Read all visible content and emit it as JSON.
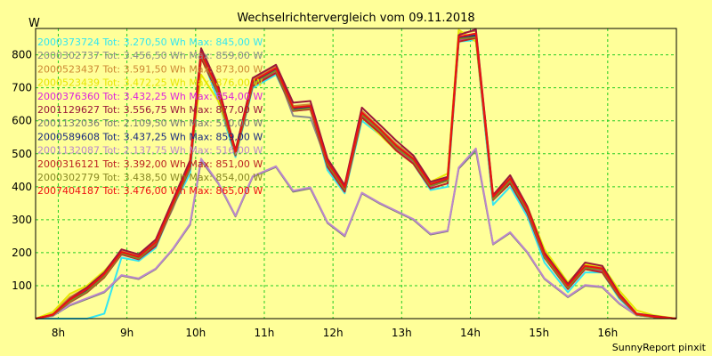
{
  "chart_data": {
    "type": "line",
    "title": "Wechselrichtervergleich vom 09.11.2018",
    "ylabel": "W",
    "ylim": [
      0,
      880
    ],
    "yticks": [
      100,
      200,
      300,
      400,
      500,
      600,
      700,
      800
    ],
    "xlim": [
      7.67,
      17.0
    ],
    "xticks": [
      {
        "x": 8,
        "label": "8h"
      },
      {
        "x": 9,
        "label": "9h"
      },
      {
        "x": 10,
        "label": "10h"
      },
      {
        "x": 11,
        "label": "11h"
      },
      {
        "x": 12,
        "label": "12h"
      },
      {
        "x": 13,
        "label": "13h"
      },
      {
        "x": 14,
        "label": "14h"
      },
      {
        "x": 15,
        "label": "15h"
      },
      {
        "x": 16,
        "label": "16h"
      }
    ],
    "grid": true,
    "legend_position": "top-left",
    "footer": "SunnyReport pinxit",
    "series": [
      {
        "name": "2000373724 Tot: 3.270,50 Wh Max: 845,00 W",
        "color": "#33e6f2",
        "x": [
          7.67,
          7.92,
          8.17,
          8.42,
          8.67,
          8.92,
          9.17,
          9.42,
          9.67,
          9.92,
          10.08,
          10.33,
          10.58,
          10.83,
          11.17,
          11.42,
          11.67,
          11.92,
          12.17,
          12.42,
          12.67,
          12.92,
          13.17,
          13.42,
          13.67,
          13.83,
          14.08,
          14.33,
          14.58,
          14.83,
          15.08,
          15.42,
          15.67,
          15.92,
          16.17,
          16.42,
          16.67,
          17.0
        ],
        "y": [
          0,
          0,
          0,
          0,
          15,
          185,
          175,
          215,
          340,
          440,
          800,
          660,
          490,
          700,
          740,
          630,
          640,
          450,
          380,
          600,
          560,
          515,
          470,
          390,
          400,
          840,
          845,
          345,
          400,
          310,
          170,
          80,
          140,
          140,
          60,
          10,
          5,
          0
        ]
      },
      {
        "name": "2000302737 Tot: 3.456,50 Wh Max: 859,00 W",
        "color": "#8c8c8c",
        "x": [
          7.67,
          7.92,
          8.17,
          8.42,
          8.67,
          8.92,
          9.17,
          9.42,
          9.67,
          9.92,
          10.08,
          10.33,
          10.58,
          10.83,
          11.17,
          11.42,
          11.67,
          11.92,
          12.17,
          12.42,
          12.67,
          12.92,
          13.17,
          13.42,
          13.67,
          13.83,
          14.08,
          14.33,
          14.58,
          14.83,
          15.08,
          15.42,
          15.67,
          15.92,
          16.17,
          16.42,
          16.67,
          17.0
        ],
        "y": [
          0,
          10,
          50,
          80,
          130,
          195,
          180,
          225,
          335,
          465,
          790,
          690,
          500,
          715,
          755,
          615,
          610,
          470,
          390,
          615,
          570,
          520,
          480,
          400,
          425,
          855,
          859,
          365,
          420,
          325,
          190,
          95,
          150,
          145,
          65,
          12,
          5,
          0
        ]
      },
      {
        "name": "2000523437 Tot: 3.591,50 Wh Max: 873,00 W",
        "color": "#cc8833",
        "x": [
          7.67,
          7.92,
          8.17,
          8.42,
          8.67,
          8.92,
          9.17,
          9.42,
          9.67,
          9.92,
          10.08,
          10.33,
          10.58,
          10.83,
          11.17,
          11.42,
          11.67,
          11.92,
          12.17,
          12.42,
          12.67,
          12.92,
          13.17,
          13.42,
          13.67,
          13.83,
          14.08,
          14.33,
          14.58,
          14.83,
          15.08,
          15.42,
          15.67,
          15.92,
          16.17,
          16.42,
          16.67,
          17.0
        ],
        "y": [
          0,
          15,
          65,
          95,
          140,
          205,
          190,
          235,
          355,
          480,
          815,
          700,
          510,
          725,
          765,
          645,
          650,
          480,
          400,
          630,
          580,
          530,
          490,
          410,
          430,
          865,
          873,
          375,
          430,
          335,
          200,
          105,
          165,
          155,
          75,
          15,
          8,
          0
        ]
      },
      {
        "name": "2000523439 Tot: 3.472,25 Wh Max: 876,00 W",
        "color": "#e6e600",
        "x": [
          7.67,
          7.92,
          8.17,
          8.42,
          8.67,
          8.92,
          9.17,
          9.42,
          9.67,
          9.92,
          10.08,
          10.33,
          10.58,
          10.83,
          11.17,
          11.42,
          11.67,
          11.92,
          12.17,
          12.42,
          12.67,
          12.92,
          13.17,
          13.42,
          13.67,
          13.83,
          14.08,
          14.33,
          14.58,
          14.83,
          15.08,
          15.42,
          15.67,
          15.92,
          16.17,
          16.42,
          16.67,
          17.0
        ],
        "y": [
          0,
          20,
          75,
          100,
          145,
          200,
          185,
          225,
          350,
          470,
          740,
          660,
          505,
          715,
          745,
          640,
          640,
          470,
          390,
          610,
          560,
          510,
          470,
          415,
          440,
          876,
          840,
          375,
          425,
          340,
          210,
          110,
          165,
          160,
          85,
          25,
          10,
          0
        ]
      },
      {
        "name": "2000376360 Tot: 3.432,25 Wh Max: 854,00 W",
        "color": "#dd22dd",
        "x": [
          7.67,
          7.92,
          8.17,
          8.42,
          8.67,
          8.92,
          9.17,
          9.42,
          9.67,
          9.92,
          10.08,
          10.33,
          10.58,
          10.83,
          11.17,
          11.42,
          11.67,
          11.92,
          12.17,
          12.42,
          12.67,
          12.92,
          13.17,
          13.42,
          13.67,
          13.83,
          14.08,
          14.33,
          14.58,
          14.83,
          15.08,
          15.42,
          15.67,
          15.92,
          16.17,
          16.42,
          16.67,
          17.0
        ],
        "y": [
          0,
          10,
          55,
          85,
          130,
          195,
          180,
          225,
          340,
          455,
          795,
          680,
          500,
          710,
          750,
          630,
          635,
          465,
          390,
          615,
          570,
          515,
          475,
          400,
          420,
          845,
          854,
          360,
          415,
          320,
          185,
          90,
          150,
          145,
          65,
          12,
          5,
          0
        ]
      },
      {
        "name": "2001129627 Tot: 3.556,75 Wh Max: 877,00 W",
        "color": "#99183a",
        "x": [
          7.67,
          7.92,
          8.17,
          8.42,
          8.67,
          8.92,
          9.17,
          9.42,
          9.67,
          9.92,
          10.08,
          10.33,
          10.58,
          10.83,
          11.17,
          11.42,
          11.67,
          11.92,
          12.17,
          12.42,
          12.67,
          12.92,
          13.17,
          13.42,
          13.67,
          13.83,
          14.08,
          14.33,
          14.58,
          14.83,
          15.08,
          15.42,
          15.67,
          15.92,
          16.17,
          16.42,
          16.67,
          17.0
        ],
        "y": [
          0,
          12,
          60,
          95,
          140,
          210,
          195,
          240,
          360,
          480,
          820,
          705,
          510,
          730,
          770,
          655,
          660,
          485,
          405,
          640,
          590,
          540,
          495,
          415,
          430,
          860,
          877,
          375,
          435,
          340,
          200,
          105,
          170,
          160,
          75,
          15,
          8,
          0
        ]
      },
      {
        "name": "2001132036 Tot: 2.109,50 Wh Max: 510,00 W",
        "color": "#777777",
        "x": [
          7.67,
          7.92,
          8.17,
          8.42,
          8.67,
          8.92,
          9.17,
          9.42,
          9.67,
          9.92,
          10.08,
          10.33,
          10.58,
          10.83,
          11.17,
          11.42,
          11.67,
          11.92,
          12.17,
          12.42,
          12.67,
          12.92,
          13.17,
          13.42,
          13.67,
          13.83,
          14.08,
          14.33,
          14.58,
          14.83,
          15.08,
          15.42,
          15.67,
          15.92,
          16.17,
          16.42,
          16.67,
          17.0
        ],
        "y": [
          0,
          8,
          40,
          60,
          80,
          130,
          120,
          150,
          210,
          285,
          480,
          410,
          310,
          430,
          460,
          385,
          395,
          290,
          250,
          380,
          350,
          325,
          300,
          255,
          265,
          455,
          510,
          225,
          260,
          200,
          120,
          65,
          100,
          95,
          45,
          10,
          5,
          0
        ]
      },
      {
        "name": "2000589608 Tot: 3.437,25 Wh Max: 859,00 W",
        "color": "#1a2a80",
        "x": [
          7.67,
          7.92,
          8.17,
          8.42,
          8.67,
          8.92,
          9.17,
          9.42,
          9.67,
          9.92,
          10.08,
          10.33,
          10.58,
          10.83,
          11.17,
          11.42,
          11.67,
          11.92,
          12.17,
          12.42,
          12.67,
          12.92,
          13.17,
          13.42,
          13.67,
          13.83,
          14.08,
          14.33,
          14.58,
          14.83,
          15.08,
          15.42,
          15.67,
          15.92,
          16.17,
          16.42,
          16.67,
          17.0
        ],
        "y": [
          0,
          10,
          55,
          85,
          130,
          200,
          185,
          230,
          345,
          460,
          805,
          690,
          500,
          715,
          755,
          635,
          640,
          470,
          395,
          620,
          575,
          520,
          480,
          405,
          420,
          850,
          859,
          365,
          420,
          330,
          190,
          95,
          155,
          150,
          70,
          12,
          5,
          0
        ]
      },
      {
        "name": "2001132087 Tot: 2.137,75 Wh Max: 516,00 W",
        "color": "#bb88cc",
        "x": [
          7.67,
          7.92,
          8.17,
          8.42,
          8.67,
          8.92,
          9.17,
          9.42,
          9.67,
          9.92,
          10.08,
          10.33,
          10.58,
          10.83,
          11.17,
          11.42,
          11.67,
          11.92,
          12.17,
          12.42,
          12.67,
          12.92,
          13.17,
          13.42,
          13.67,
          13.83,
          14.08,
          14.33,
          14.58,
          14.83,
          15.08,
          15.42,
          15.67,
          15.92,
          16.17,
          16.42,
          16.67,
          17.0
        ],
        "y": [
          0,
          8,
          42,
          62,
          82,
          132,
          122,
          152,
          212,
          288,
          485,
          412,
          312,
          432,
          462,
          388,
          398,
          292,
          252,
          382,
          352,
          327,
          302,
          257,
          267,
          458,
          516,
          227,
          262,
          202,
          122,
          67,
          102,
          97,
          47,
          10,
          5,
          0
        ]
      },
      {
        "name": "2000316121 Tot: 3.392,00 Wh Max: 851,00 W",
        "color": "#bb2222",
        "x": [
          7.67,
          7.92,
          8.17,
          8.42,
          8.67,
          8.92,
          9.17,
          9.42,
          9.67,
          9.92,
          10.08,
          10.33,
          10.58,
          10.83,
          11.17,
          11.42,
          11.67,
          11.92,
          12.17,
          12.42,
          12.67,
          12.92,
          13.17,
          13.42,
          13.67,
          13.83,
          14.08,
          14.33,
          14.58,
          14.83,
          15.08,
          15.42,
          15.67,
          15.92,
          16.17,
          16.42,
          16.67,
          17.0
        ],
        "y": [
          0,
          10,
          50,
          80,
          125,
          195,
          180,
          220,
          340,
          455,
          790,
          680,
          495,
          705,
          745,
          630,
          635,
          460,
          385,
          610,
          565,
          510,
          470,
          395,
          410,
          840,
          851,
          360,
          410,
          320,
          185,
          90,
          150,
          140,
          65,
          12,
          5,
          0
        ]
      },
      {
        "name": "2000302779 Tot: 3.438,50 Wh Max: 854,00 W",
        "color": "#888822",
        "x": [
          7.67,
          7.92,
          8.17,
          8.42,
          8.67,
          8.92,
          9.17,
          9.42,
          9.67,
          9.92,
          10.08,
          10.33,
          10.58,
          10.83,
          11.17,
          11.42,
          11.67,
          11.92,
          12.17,
          12.42,
          12.67,
          12.92,
          13.17,
          13.42,
          13.67,
          13.83,
          14.08,
          14.33,
          14.58,
          14.83,
          15.08,
          15.42,
          15.67,
          15.92,
          16.17,
          16.42,
          16.67,
          17.0
        ],
        "y": [
          0,
          10,
          52,
          82,
          128,
          198,
          182,
          228,
          342,
          458,
          800,
          685,
          498,
          712,
          752,
          632,
          638,
          468,
          392,
          618,
          572,
          518,
          478,
          402,
          418,
          848,
          854,
          362,
          418,
          328,
          188,
          94,
          154,
          148,
          68,
          12,
          5,
          0
        ]
      },
      {
        "name": "2007404187 Tot: 3.476,00 Wh Max: 865,00 W",
        "color": "#ee1111",
        "x": [
          7.67,
          7.92,
          8.17,
          8.42,
          8.67,
          8.92,
          9.17,
          9.42,
          9.67,
          9.92,
          10.08,
          10.33,
          10.58,
          10.83,
          11.17,
          11.42,
          11.67,
          11.92,
          12.17,
          12.42,
          12.67,
          12.92,
          13.17,
          13.42,
          13.67,
          13.83,
          14.08,
          14.33,
          14.58,
          14.83,
          15.08,
          15.42,
          15.67,
          15.92,
          16.17,
          16.42,
          16.67,
          17.0
        ],
        "y": [
          0,
          12,
          58,
          90,
          135,
          202,
          188,
          232,
          350,
          468,
          805,
          695,
          505,
          720,
          760,
          640,
          645,
          475,
          398,
          625,
          578,
          525,
          485,
          408,
          425,
          855,
          865,
          370,
          425,
          335,
          195,
          100,
          160,
          152,
          72,
          14,
          6,
          0
        ]
      }
    ]
  }
}
